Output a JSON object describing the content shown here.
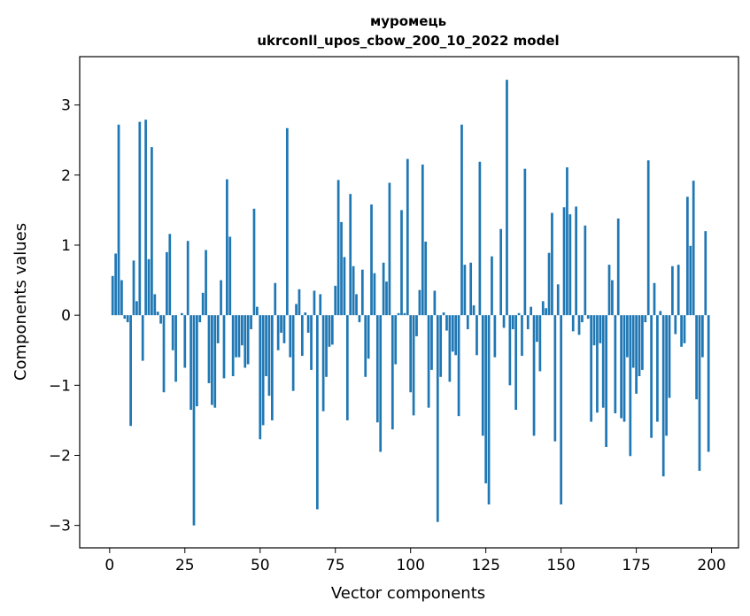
{
  "chart_data": {
    "type": "bar",
    "title_line1": "муромець",
    "title_line2": "ukrconll_upos_cbow_200_10_2022 model",
    "xlabel": "Vector components",
    "ylabel": "Components values",
    "xlim": [
      -9.95,
      208.95
    ],
    "ylim": [
      -3.32,
      3.69
    ],
    "x_ticks": [
      0,
      25,
      50,
      75,
      100,
      125,
      150,
      175,
      200
    ],
    "y_ticks": [
      -3,
      -2,
      -1,
      0,
      1,
      2,
      3
    ],
    "y_tick_labels": [
      "−3",
      "−2",
      "−1",
      "0",
      "1",
      "2",
      "3"
    ],
    "bar_color": "#1f77b4",
    "grid": false,
    "x": [
      0,
      1,
      2,
      3,
      4,
      5,
      6,
      7,
      8,
      9,
      10,
      11,
      12,
      13,
      14,
      15,
      16,
      17,
      18,
      19,
      20,
      21,
      22,
      23,
      24,
      25,
      26,
      27,
      28,
      29,
      30,
      31,
      32,
      33,
      34,
      35,
      36,
      37,
      38,
      39,
      40,
      41,
      42,
      43,
      44,
      45,
      46,
      47,
      48,
      49,
      50,
      51,
      52,
      53,
      54,
      55,
      56,
      57,
      58,
      59,
      60,
      61,
      62,
      63,
      64,
      65,
      66,
      67,
      68,
      69,
      70,
      71,
      72,
      73,
      74,
      75,
      76,
      77,
      78,
      79,
      80,
      81,
      82,
      83,
      84,
      85,
      86,
      87,
      88,
      89,
      90,
      91,
      92,
      93,
      94,
      95,
      96,
      97,
      98,
      99,
      100,
      101,
      102,
      103,
      104,
      105,
      106,
      107,
      108,
      109,
      110,
      111,
      112,
      113,
      114,
      115,
      116,
      117,
      118,
      119,
      120,
      121,
      122,
      123,
      124,
      125,
      126,
      127,
      128,
      129,
      130,
      131,
      132,
      133,
      134,
      135,
      136,
      137,
      138,
      139,
      140,
      141,
      142,
      143,
      144,
      145,
      146,
      147,
      148,
      149,
      150,
      151,
      152,
      153,
      154,
      155,
      156,
      157,
      158,
      159,
      160,
      161,
      162,
      163,
      164,
      165,
      166,
      167,
      168,
      169,
      170,
      171,
      172,
      173,
      174,
      175,
      176,
      177,
      178,
      179,
      180,
      181,
      182,
      183,
      184,
      185,
      186,
      187,
      188,
      189,
      190,
      191,
      192,
      193,
      194,
      195,
      196,
      197,
      198,
      199
    ],
    "values": [
      0.0,
      0.56,
      0.88,
      2.72,
      0.5,
      -0.05,
      -0.1,
      -1.58,
      0.78,
      0.2,
      2.76,
      -0.65,
      2.79,
      0.8,
      2.4,
      0.3,
      0.05,
      -0.12,
      -1.1,
      0.9,
      1.16,
      -0.5,
      -0.95,
      0.0,
      0.03,
      -0.75,
      1.06,
      -1.35,
      -3.0,
      -1.3,
      -0.1,
      0.32,
      0.93,
      -0.97,
      -1.28,
      -1.32,
      -0.4,
      0.5,
      -0.9,
      1.94,
      1.12,
      -0.87,
      -0.6,
      -0.6,
      -0.43,
      -0.75,
      -0.7,
      -0.2,
      1.52,
      0.12,
      -1.77,
      -1.57,
      -0.87,
      -1.15,
      -1.5,
      0.46,
      -0.5,
      -0.25,
      -0.4,
      2.67,
      -0.6,
      -1.08,
      0.16,
      0.37,
      -0.58,
      0.04,
      -0.25,
      -0.78,
      0.35,
      -2.77,
      0.3,
      -1.37,
      -0.88,
      -0.45,
      -0.42,
      0.42,
      1.93,
      1.33,
      0.83,
      -1.5,
      1.73,
      0.7,
      0.3,
      -0.1,
      0.65,
      -0.88,
      -0.62,
      1.58,
      0.6,
      -1.53,
      -1.95,
      0.75,
      0.48,
      1.89,
      -1.63,
      -0.7,
      0.03,
      1.5,
      0.03,
      2.23,
      -1.1,
      -1.43,
      -0.3,
      0.36,
      2.15,
      1.05,
      -1.32,
      -0.78,
      0.35,
      -2.95,
      -0.88,
      0.04,
      -0.22,
      -0.95,
      -0.52,
      -0.57,
      -1.44,
      2.72,
      0.72,
      -0.2,
      0.75,
      0.14,
      -0.57,
      2.19,
      -1.72,
      -2.4,
      -2.7,
      0.84,
      -0.6,
      0.0,
      1.23,
      -0.18,
      3.36,
      -1.0,
      -0.2,
      -1.35,
      0.03,
      -0.58,
      2.09,
      -0.2,
      0.12,
      -1.72,
      -0.38,
      -0.8,
      0.2,
      0.1,
      0.89,
      1.46,
      -1.8,
      0.44,
      -2.7,
      1.54,
      2.11,
      1.44,
      -0.23,
      1.55,
      -0.28,
      -0.1,
      1.28,
      -0.05,
      -1.52,
      -0.43,
      -1.39,
      -0.4,
      -1.32,
      -1.88,
      0.72,
      0.5,
      -1.4,
      1.38,
      -1.47,
      -1.52,
      -0.6,
      -2.01,
      -0.75,
      -1.12,
      -0.87,
      -0.78,
      -0.1,
      2.21,
      -1.75,
      0.46,
      -1.52,
      0.06,
      -2.3,
      -1.72,
      -1.18,
      0.7,
      -0.27,
      0.72,
      -0.45,
      -0.4,
      1.69,
      0.99,
      1.92,
      -1.2,
      -2.22,
      -0.6,
      1.2,
      -1.95
    ]
  }
}
